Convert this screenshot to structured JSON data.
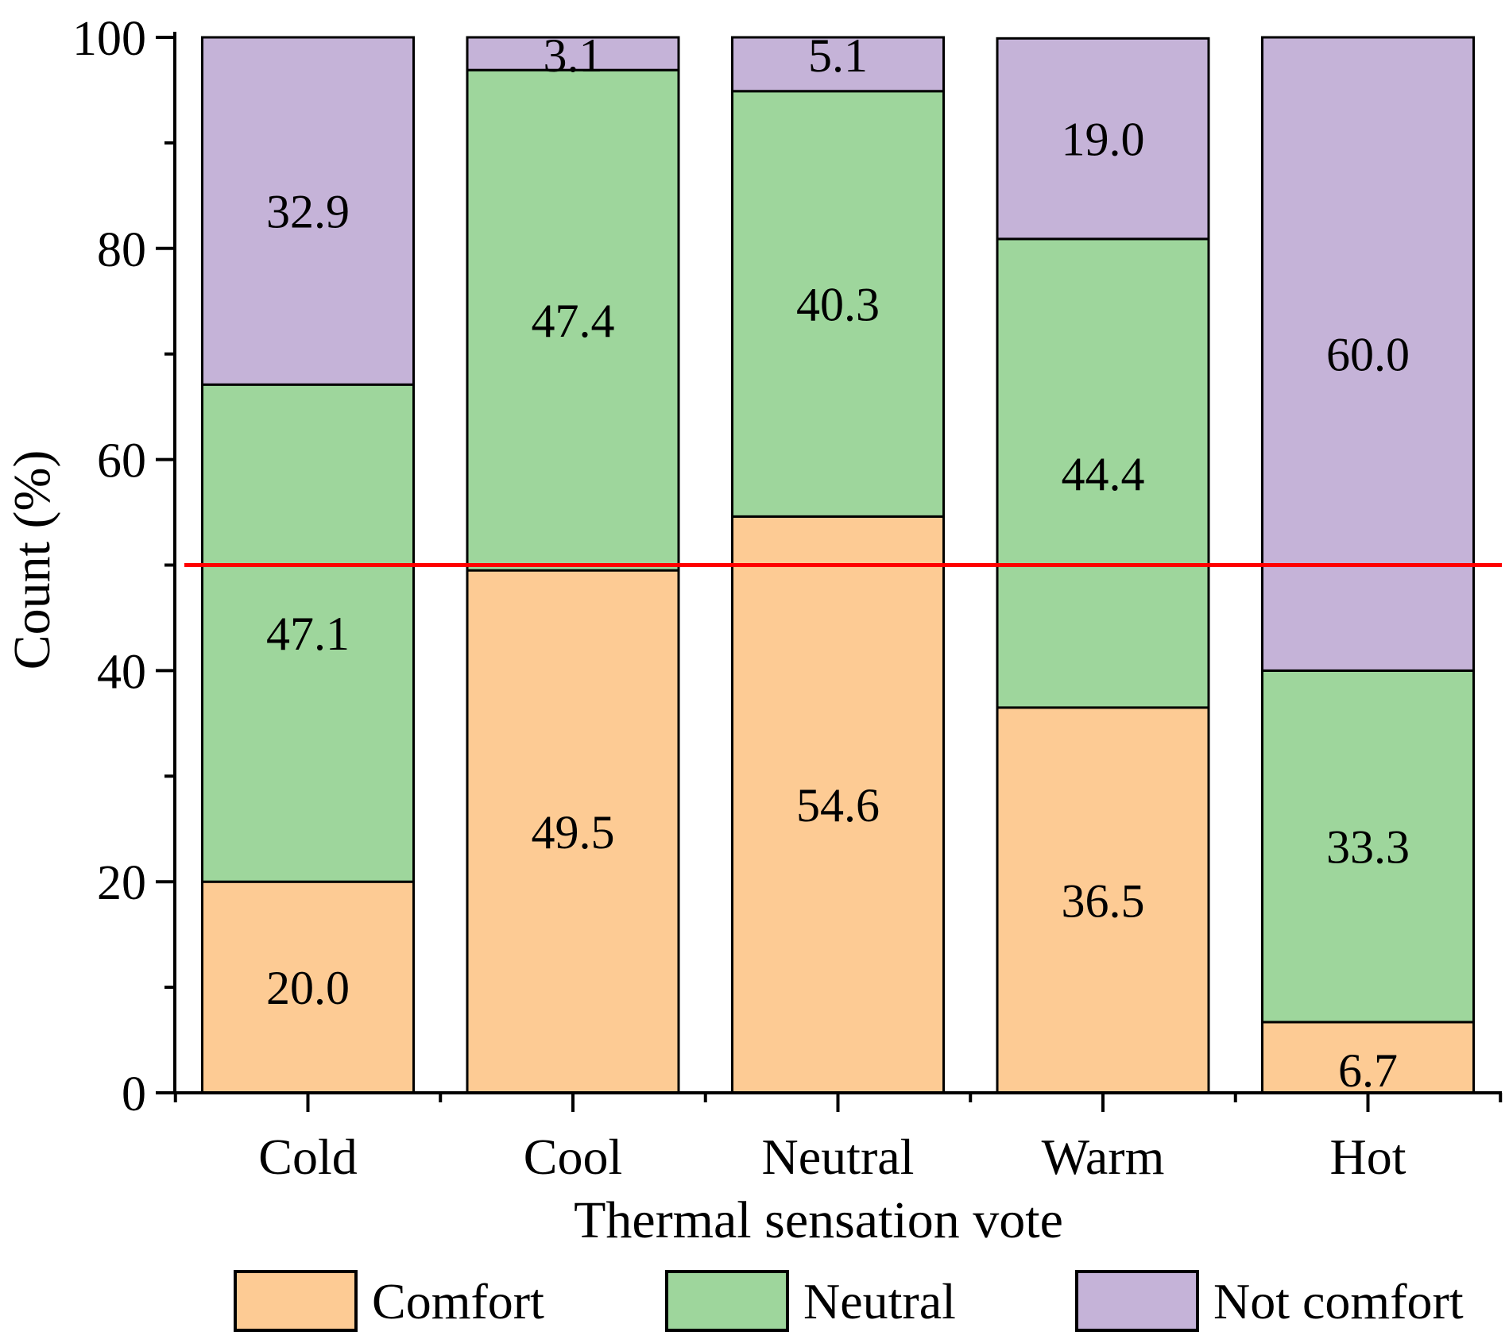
{
  "chart_data": {
    "type": "bar",
    "stacked": true,
    "title": "",
    "xlabel": "Thermal sensation vote",
    "ylabel": "Count (%)",
    "ylim": [
      0,
      100
    ],
    "yticks": [
      0,
      20,
      40,
      60,
      80,
      100
    ],
    "yticks_labels": [
      "0",
      "20",
      "40",
      "60",
      "80",
      "100"
    ],
    "categories": [
      "Cold",
      "Cool",
      "Neutral",
      "Warm",
      "Hot"
    ],
    "series": [
      {
        "name": "Comfort",
        "color": "#FDCB94",
        "values": [
          20.0,
          49.5,
          54.6,
          36.5,
          6.7
        ],
        "labels": [
          "20.0",
          "49.5",
          "54.6",
          "36.5",
          "6.7"
        ]
      },
      {
        "name": "Neutral",
        "color": "#9ED69C",
        "values": [
          47.1,
          47.4,
          40.3,
          44.4,
          33.3
        ],
        "labels": [
          "47.1",
          "47.4",
          "40.3",
          "44.4",
          "33.3"
        ]
      },
      {
        "name": "Not comfort",
        "color": "#C5B3D8",
        "values": [
          32.9,
          3.1,
          5.1,
          19.0,
          60.0
        ],
        "labels": [
          "32.9",
          "3.1",
          "5.1",
          "19.0",
          "60.0"
        ]
      }
    ],
    "reference_line": {
      "y": 50,
      "color": "#FF0000"
    },
    "legend_position": "bottom"
  }
}
